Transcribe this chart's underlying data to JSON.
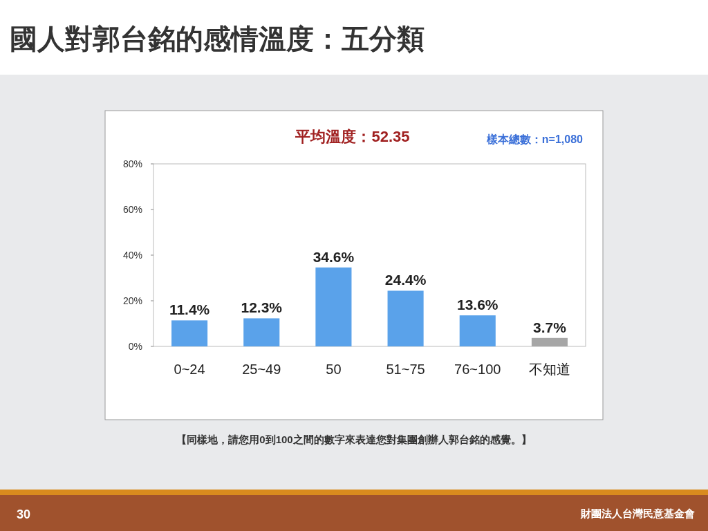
{
  "chart_data": {
    "type": "bar",
    "title": "國人對郭台銘的感情溫度：五分類",
    "subtitle": "平均溫度：52.35",
    "categories": [
      "0~24",
      "25~49",
      "50",
      "51~75",
      "76~100",
      "不知道"
    ],
    "values": [
      11.4,
      12.3,
      34.6,
      24.4,
      13.6,
      3.7
    ],
    "value_labels": [
      "11.4%",
      "12.3%",
      "34.6%",
      "24.4%",
      "13.6%",
      "3.7%"
    ],
    "colors": [
      "#5aa2ea",
      "#5aa2ea",
      "#5aa2ea",
      "#5aa2ea",
      "#5aa2ea",
      "#a6a6a6"
    ],
    "ylim": [
      0,
      80
    ],
    "yticks": [
      {
        "value": 0,
        "label": "0%"
      },
      {
        "value": 20,
        "label": "20%"
      },
      {
        "value": 40,
        "label": "40%"
      },
      {
        "value": 60,
        "label": "60%"
      },
      {
        "value": 80,
        "label": "80%"
      }
    ],
    "grid": false,
    "annotations": [
      "樣本總數：n=1,080",
      "【同樣地，請您用0到100之間的數字來表達您對集團創辦人郭台銘的感覺。】",
      "30",
      "財團法人台灣民意基金會"
    ]
  }
}
